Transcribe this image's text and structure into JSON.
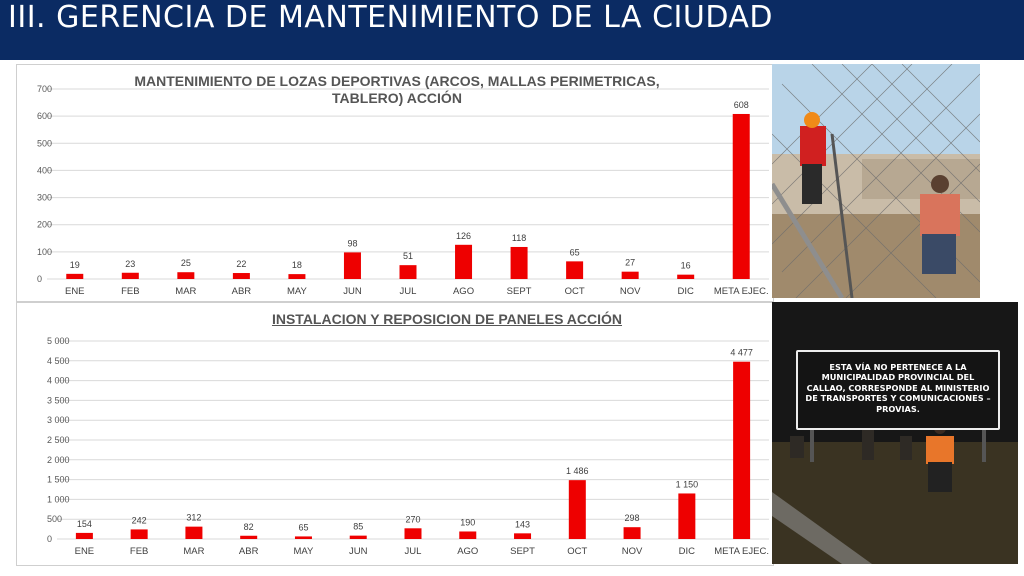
{
  "header": {
    "title": "III. GERENCIA DE MANTENIMIENTO DE LA CIUDAD"
  },
  "colors": {
    "header_bg": "#0b2b63",
    "bar": "#ee0000",
    "grid": "#d9d9d9",
    "axis_text": "#595959"
  },
  "chart_data": [
    {
      "type": "bar",
      "title": "MANTENIMIENTO DE LOZAS DEPORTIVAS (ARCOS, MALLAS PERIMETRICAS, TABLERO) ACCIÓN",
      "categories": [
        "ENE",
        "FEB",
        "MAR",
        "ABR",
        "MAY",
        "JUN",
        "JUL",
        "AGO",
        "SEPT",
        "OCT",
        "NOV",
        "DIC",
        "META EJEC."
      ],
      "values": [
        19,
        23,
        25,
        22,
        18,
        98,
        51,
        126,
        118,
        65,
        27,
        16,
        608
      ],
      "value_labels": [
        "19",
        "23",
        "25",
        "22",
        "18",
        "98",
        "51",
        "126",
        "118",
        "65",
        "27",
        "16",
        "608"
      ],
      "yticks": [
        "0",
        "100",
        "200",
        "300",
        "400",
        "500",
        "600",
        "700"
      ],
      "ylim": [
        0,
        700
      ],
      "grid": true,
      "xlabel": "",
      "ylabel": ""
    },
    {
      "type": "bar",
      "title": "INSTALACION Y REPOSICION DE PANELES ACCIÓN",
      "categories": [
        "ENE",
        "FEB",
        "MAR",
        "ABR",
        "MAY",
        "JUN",
        "JUL",
        "AGO",
        "SEPT",
        "OCT",
        "NOV",
        "DIC",
        "META EJEC."
      ],
      "values": [
        154,
        242,
        312,
        82,
        65,
        85,
        270,
        190,
        143,
        1486,
        298,
        1150,
        4477
      ],
      "value_labels": [
        "154",
        "242",
        "312",
        "82",
        "65",
        "85",
        "270",
        "190",
        "143",
        "1 486",
        "298",
        "1 150",
        "4 477"
      ],
      "yticks": [
        "0",
        "500",
        "1 000",
        "1 500",
        "2 000",
        "2 500",
        "3 000",
        "3 500",
        "4 000",
        "4 500",
        "5 000"
      ],
      "ylim": [
        0,
        5000
      ],
      "grid": true,
      "xlabel": "",
      "ylabel": ""
    }
  ],
  "photo2": {
    "sign_text": "ESTA VÍA NO PERTENECE A LA MUNICIPALIDAD PROVINCIAL DEL CALLAO, CORRESPONDE AL MINISTERIO DE TRANSPORTES Y COMUNICACIONES – PROVIAS."
  }
}
